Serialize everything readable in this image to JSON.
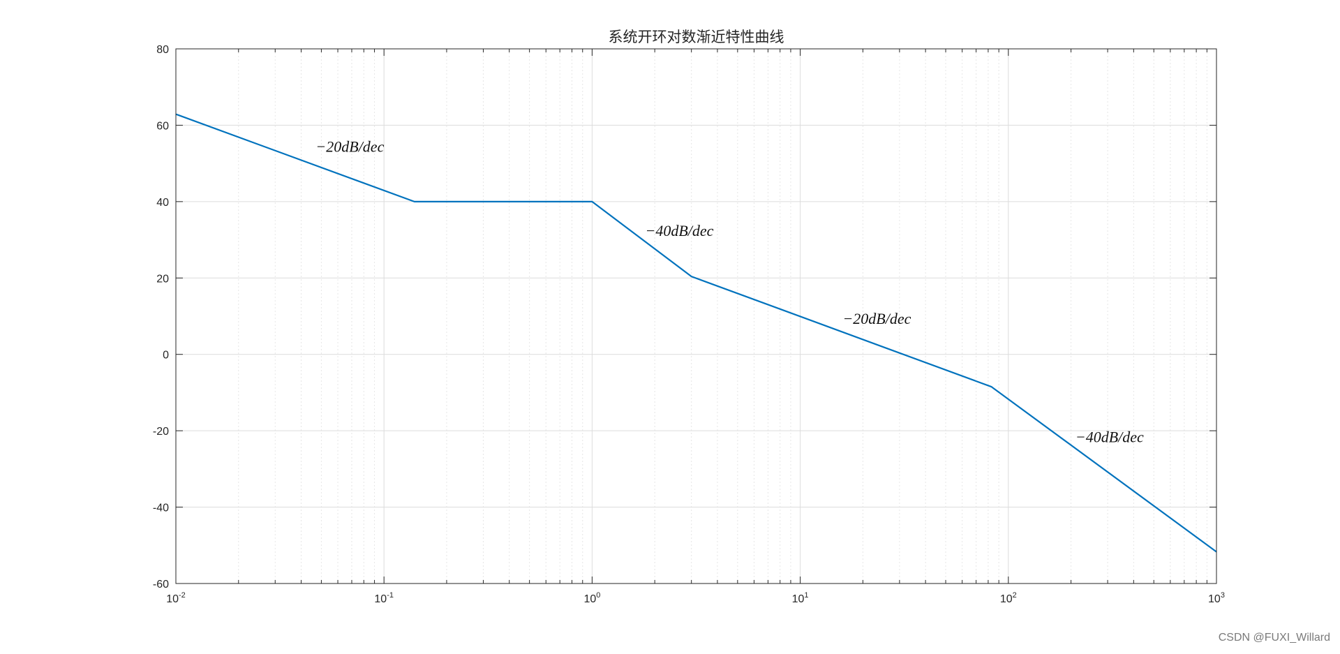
{
  "watermark": "CSDN @FUXI_Willard",
  "colors": {
    "line": "#0072BD",
    "axis": "#262626",
    "grid_major": "#dcdcdc",
    "grid_minor": "#e6e6e6"
  },
  "chart_data": {
    "type": "line",
    "title": "系统开环对数渐近特性曲线",
    "xlabel": "",
    "ylabel": "",
    "x_scale": "log",
    "xlim": [
      0.01,
      1000
    ],
    "ylim": [
      -60,
      80
    ],
    "x_ticks": [
      {
        "base": "10",
        "exp": "-2",
        "value": 0.01
      },
      {
        "base": "10",
        "exp": "-1",
        "value": 0.1
      },
      {
        "base": "10",
        "exp": "0",
        "value": 1
      },
      {
        "base": "10",
        "exp": "1",
        "value": 10
      },
      {
        "base": "10",
        "exp": "2",
        "value": 100
      },
      {
        "base": "10",
        "exp": "3",
        "value": 1000
      }
    ],
    "y_ticks": [
      "80",
      "60",
      "40",
      "20",
      "0",
      "-20",
      "-40",
      "-60"
    ],
    "grid": true,
    "minor_grid": true,
    "box": true,
    "series": [
      {
        "x": [
          0.01,
          0.14,
          1,
          3,
          83,
          1000
        ],
        "y": [
          62.9,
          40,
          40,
          20.4,
          -8.5,
          -51.7
        ]
      }
    ],
    "annotations": [
      {
        "text": "−20dB/dec",
        "x": 0.047,
        "y": 53
      },
      {
        "text": "−40dB/dec",
        "x": 1.8,
        "y": 31
      },
      {
        "text": "−20dB/dec",
        "x": 16,
        "y": 8
      },
      {
        "text": "−40dB/dec",
        "x": 210,
        "y": -23
      }
    ]
  }
}
